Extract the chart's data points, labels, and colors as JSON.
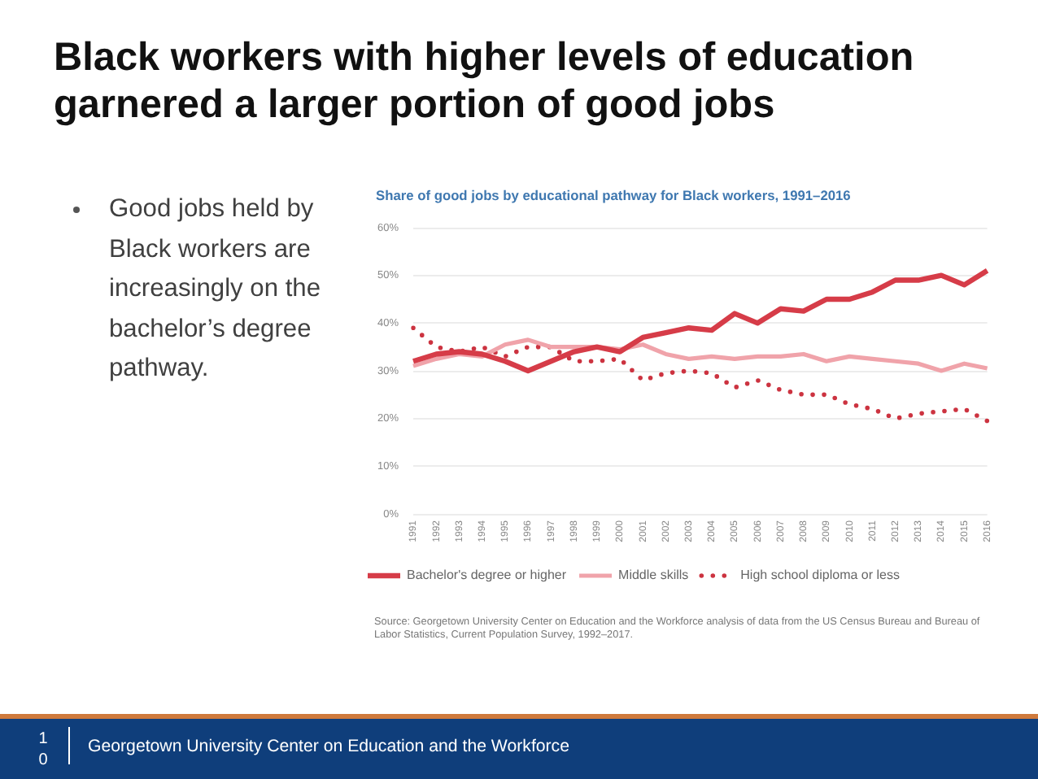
{
  "chart_data": {
    "type": "line",
    "title": "Black workers with higher levels of education garnered a larger portion of good jobs",
    "subtitle": "Share of good jobs by educational pathway for Black workers, 1991–2016",
    "categories": [
      "1991",
      "1992",
      "1993",
      "1994",
      "1995",
      "1996",
      "1997",
      "1998",
      "1999",
      "2000",
      "2001",
      "2002",
      "2003",
      "2004",
      "2005",
      "2006",
      "2007",
      "2008",
      "2009",
      "2010",
      "2011",
      "2012",
      "2013",
      "2014",
      "2015",
      "2016"
    ],
    "series": [
      {
        "name": "Bachelor's degree or higher",
        "color": "#d63c48",
        "line_style": "solid",
        "values": [
          32,
          33.5,
          34,
          33.5,
          32,
          30,
          32,
          34,
          35,
          34,
          37,
          38,
          39,
          38.5,
          42,
          40,
          43,
          42.5,
          45,
          45,
          46.5,
          49,
          49,
          50,
          48,
          51
        ]
      },
      {
        "name": "Middle skills",
        "color": "#f0a3aa",
        "line_style": "solid",
        "values": [
          31,
          32.5,
          33.5,
          33,
          35.5,
          36.5,
          35,
          35,
          35,
          34.5,
          35.5,
          33.5,
          32.5,
          33,
          32.5,
          33,
          33,
          33.5,
          32,
          33,
          32.5,
          32,
          31.5,
          30,
          31.5,
          30.5
        ]
      },
      {
        "name": "High school diploma or less",
        "color": "#cc3340",
        "line_style": "dotted",
        "values": [
          39,
          35,
          34,
          35,
          33,
          35,
          35,
          32,
          32,
          32.5,
          28,
          29.5,
          30,
          29.5,
          26.5,
          28,
          26,
          25,
          25,
          23,
          22,
          20,
          21,
          21.5,
          22,
          19.5
        ]
      }
    ],
    "ylim": [
      0,
      60
    ],
    "yticks": [
      {
        "value": 0,
        "label": "0%"
      },
      {
        "value": 10,
        "label": "10%"
      },
      {
        "value": 20,
        "label": "20%"
      },
      {
        "value": 30,
        "label": "30%"
      },
      {
        "value": 40,
        "label": "40%"
      },
      {
        "value": 50,
        "label": "50%"
      },
      {
        "value": 60,
        "label": "60%"
      }
    ],
    "grid": "y",
    "legend": "bottom left",
    "marker": "none",
    "annotations": [
      "Good jobs held by Black workers are increasingly on the bachelor’s degree pathway.",
      "Source: Georgetown University Center on Education and the Workforce analysis of data from the US Census Bureau and Bureau of Labor Statistics, Current Population Survey, 1992–2017.",
      "Georgetown University Center on Education and the Workforce",
      "10"
    ]
  }
}
